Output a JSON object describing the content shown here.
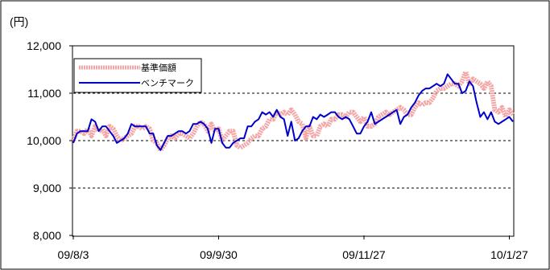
{
  "chart_data": {
    "type": "line",
    "unit_label": "(円)",
    "y_ticks": [
      "12,000",
      "11,000",
      "10,000",
      "9,000",
      "8,000"
    ],
    "y_tick_values": [
      12000,
      11000,
      10000,
      9000,
      8000
    ],
    "ylim": [
      8000,
      12000
    ],
    "x_ticks": [
      "09/8/3",
      "09/9/30",
      "09/11/27",
      "10/1/27"
    ],
    "x_tick_index": [
      0,
      40,
      80,
      120
    ],
    "grid": "horizontal-dashed",
    "legend_position": "top-left",
    "colors": {
      "nav": "#f4a6a6",
      "benchmark": "#0000cc"
    },
    "series": [
      {
        "name": "基準価額",
        "key": "nav",
        "values": [
          10000,
          10200,
          10200,
          10150,
          10250,
          10100,
          10300,
          10200,
          10250,
          10100,
          10300,
          10250,
          10100,
          10000,
          10050,
          10100,
          10150,
          10300,
          10300,
          10250,
          10300,
          10250,
          10000,
          9950,
          9800,
          9900,
          10050,
          10100,
          10050,
          10150,
          10150,
          10100,
          10050,
          10150,
          10300,
          10400,
          10350,
          10200,
          10350,
          10200,
          10250,
          10000,
          10100,
          10200,
          10200,
          9900,
          9850,
          9900,
          9950,
          10050,
          10100,
          10100,
          10250,
          10300,
          10450,
          10450,
          10600,
          10550,
          10600,
          10550,
          10650,
          10550,
          10400,
          10350,
          10050,
          10300,
          10100,
          10100,
          10300,
          10350,
          10300,
          10450,
          10450,
          10550,
          10550,
          10500,
          10600,
          10600,
          10500,
          10400,
          10500,
          10300,
          10300,
          10350,
          10500,
          10550,
          10600,
          10550,
          10600,
          10650,
          10700,
          10650,
          10550,
          10550,
          10700,
          10800,
          10750,
          10800,
          10800,
          10900,
          11050,
          11100,
          11100,
          11150,
          11200,
          11200,
          11150,
          11250,
          11450,
          11200,
          11300,
          11250,
          11200,
          11100,
          11250,
          11150,
          10650,
          10600,
          10700,
          10500,
          10650,
          10550
        ]
      },
      {
        "name": "ベンチマーク",
        "key": "benchmark",
        "values": [
          9950,
          10150,
          10200,
          10200,
          10200,
          10450,
          10400,
          10200,
          10300,
          10300,
          10200,
          10100,
          9950,
          10000,
          10050,
          10150,
          10350,
          10300,
          10300,
          10300,
          10300,
          10150,
          10150,
          9900,
          9800,
          9950,
          10100,
          10100,
          10150,
          10200,
          10200,
          10150,
          10200,
          10350,
          10350,
          10400,
          10350,
          10250,
          9950,
          10250,
          10250,
          9950,
          9850,
          9850,
          9950,
          10000,
          10050,
          10050,
          10300,
          10300,
          10400,
          10450,
          10600,
          10550,
          10600,
          10500,
          10650,
          10500,
          10450,
          10100,
          10400,
          10000,
          10050,
          10200,
          10300,
          10300,
          10500,
          10450,
          10550,
          10500,
          10550,
          10600,
          10600,
          10500,
          10450,
          10500,
          10450,
          10300,
          10150,
          10150,
          10300,
          10400,
          10600,
          10350,
          10400,
          10450,
          10500,
          10550,
          10600,
          10650,
          10350,
          10500,
          10550,
          10700,
          10800,
          10950,
          11050,
          11100,
          11100,
          11150,
          11200,
          11150,
          11200,
          11400,
          11300,
          11200,
          11200,
          11000,
          11050,
          11250,
          11150,
          10800,
          10500,
          10600,
          10450,
          10600,
          10400,
          10350,
          10400,
          10450,
          10500,
          10400
        ]
      }
    ]
  }
}
